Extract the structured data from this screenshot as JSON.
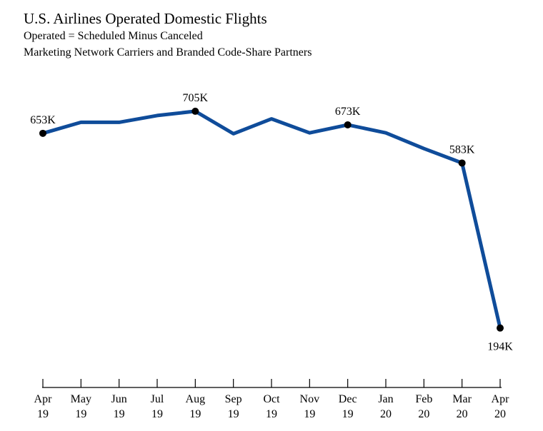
{
  "chart_data": {
    "type": "line",
    "title": "U.S. Airlines Operated Domestic Flights",
    "subtitle": [
      "Operated = Scheduled Minus Canceled",
      "Marketing Network Carriers and Branded Code-Share Partners"
    ],
    "xlabel": "",
    "ylabel": "",
    "unit": "flights",
    "categories": [
      [
        "Apr",
        "19"
      ],
      [
        "May",
        "19"
      ],
      [
        "Jun",
        "19"
      ],
      [
        "Jul",
        "19"
      ],
      [
        "Aug",
        "19"
      ],
      [
        "Sep",
        "19"
      ],
      [
        "Oct",
        "19"
      ],
      [
        "Nov",
        "19"
      ],
      [
        "Dec",
        "19"
      ],
      [
        "Jan",
        "20"
      ],
      [
        "Feb",
        "20"
      ],
      [
        "Mar",
        "20"
      ],
      [
        "Apr",
        "20"
      ]
    ],
    "series": [
      {
        "name": "Operated Domestic Flights",
        "color": "#0f4c9a",
        "values": [
          653000,
          679000,
          679000,
          695000,
          705000,
          652000,
          687000,
          654000,
          673000,
          654000,
          617000,
          583000,
          194000
        ]
      }
    ],
    "labeled_points": [
      {
        "index": 0,
        "label": "653K"
      },
      {
        "index": 4,
        "label": "705K"
      },
      {
        "index": 8,
        "label": "673K"
      },
      {
        "index": 11,
        "label": "583K"
      },
      {
        "index": 12,
        "label": "194K"
      }
    ],
    "ylim": [
      0,
      900000
    ],
    "grid": false,
    "legend": "none"
  }
}
